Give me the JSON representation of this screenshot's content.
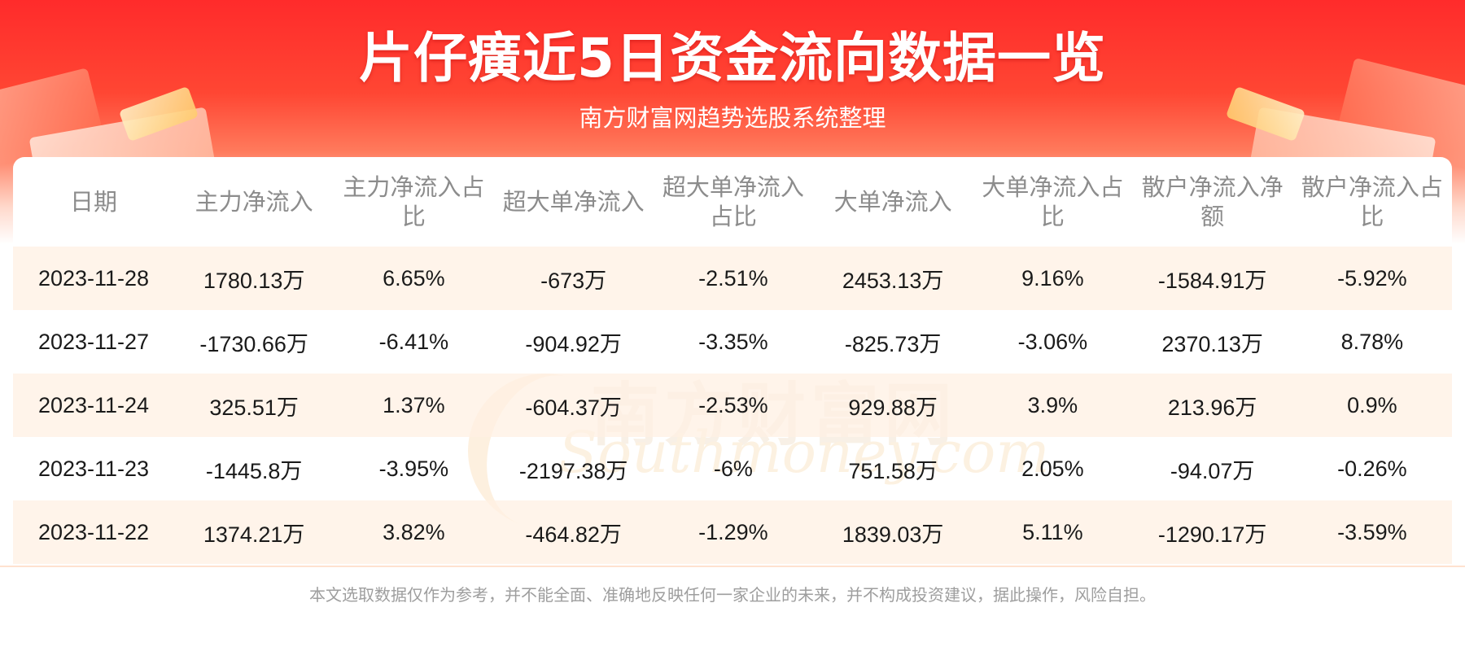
{
  "header": {
    "title": "片仔癀近5日资金流向数据一览",
    "subtitle": "南方财富网趋势选股系统整理"
  },
  "watermark": {
    "cn": "南方财富网",
    "en": "Southmoney.com"
  },
  "table": {
    "columns": [
      "日期",
      "主力净流入",
      "主力净流入占比",
      "超大单净流入",
      "超大单净流入占比",
      "大单净流入",
      "大单净流入占比",
      "散户净流入净额",
      "散户净流入占比"
    ],
    "rows": [
      [
        "2023-11-28",
        "1780.13万",
        "6.65%",
        "-673万",
        "-2.51%",
        "2453.13万",
        "9.16%",
        "-1584.91万",
        "-5.92%"
      ],
      [
        "2023-11-27",
        "-1730.66万",
        "-6.41%",
        "-904.92万",
        "-3.35%",
        "-825.73万",
        "-3.06%",
        "2370.13万",
        "8.78%"
      ],
      [
        "2023-11-24",
        "325.51万",
        "1.37%",
        "-604.37万",
        "-2.53%",
        "929.88万",
        "3.9%",
        "213.96万",
        "0.9%"
      ],
      [
        "2023-11-23",
        "-1445.8万",
        "-3.95%",
        "-2197.38万",
        "-6%",
        "751.58万",
        "2.05%",
        "-94.07万",
        "-0.26%"
      ],
      [
        "2023-11-22",
        "1374.21万",
        "3.82%",
        "-464.82万",
        "-1.29%",
        "1839.03万",
        "5.11%",
        "-1290.17万",
        "-3.59%"
      ]
    ]
  },
  "footer": {
    "disclaimer": "本文选取数据仅作为参考，并不能全面、准确地反映任何一家企业的未来，并不构成投资建议，据此操作，风险自担。"
  },
  "colors": {
    "banner_red": "#ff2b2b",
    "row_shade": "#fff0e3",
    "header_text": "#8c8c8c"
  }
}
